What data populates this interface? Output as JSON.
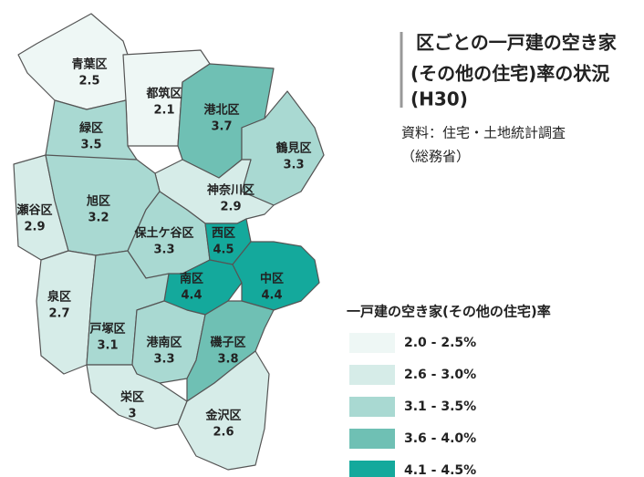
{
  "title": [
    "区ごとの一戸建の空き家",
    "(その他の住宅)率の状況",
    "(H30)"
  ],
  "source": [
    "資料：住宅・土地統計調査",
    "（総務省）"
  ],
  "legend": {
    "title": "一戸建の空き家(その他の住宅)率",
    "items": [
      {
        "value": [
          2.0,
          2.5
        ],
        "label": "2.0 - 2.5%",
        "color": "#eef7f5"
      },
      {
        "value": [
          2.6,
          3.0
        ],
        "label": "2.6 - 3.0%",
        "color": "#d6ece8"
      },
      {
        "value": [
          3.1,
          3.5
        ],
        "label": "3.1 - 3.5%",
        "color": "#a9d9d2"
      },
      {
        "value": [
          3.6,
          4.0
        ],
        "label": "3.6 - 4.0%",
        "color": "#6fc0b4"
      },
      {
        "value": [
          4.1,
          4.5
        ],
        "label": "4.1 - 4.5%",
        "color": "#14a99c"
      }
    ]
  },
  "wards": [
    {
      "name": "青葉区",
      "value": 2.5
    },
    {
      "name": "都筑区",
      "value": 2.1
    },
    {
      "name": "港北区",
      "value": 3.7
    },
    {
      "name": "緑区",
      "value": 3.5
    },
    {
      "name": "鶴見区",
      "value": 3.3
    },
    {
      "name": "神奈川区",
      "value": 2.9
    },
    {
      "name": "瀬谷区",
      "value": 2.9
    },
    {
      "name": "旭区",
      "value": 3.2
    },
    {
      "name": "保土ケ谷区",
      "value": 3.3
    },
    {
      "name": "西区",
      "value": 4.5
    },
    {
      "name": "南区",
      "value": 4.4
    },
    {
      "name": "中区",
      "value": 4.4
    },
    {
      "name": "泉区",
      "value": 2.7
    },
    {
      "name": "戸塚区",
      "value": 3.1
    },
    {
      "name": "港南区",
      "value": 3.3
    },
    {
      "name": "磯子区",
      "value": 3.8
    },
    {
      "name": "栄区",
      "value": 3.0
    },
    {
      "name": "金沢区",
      "value": 2.6
    }
  ]
}
